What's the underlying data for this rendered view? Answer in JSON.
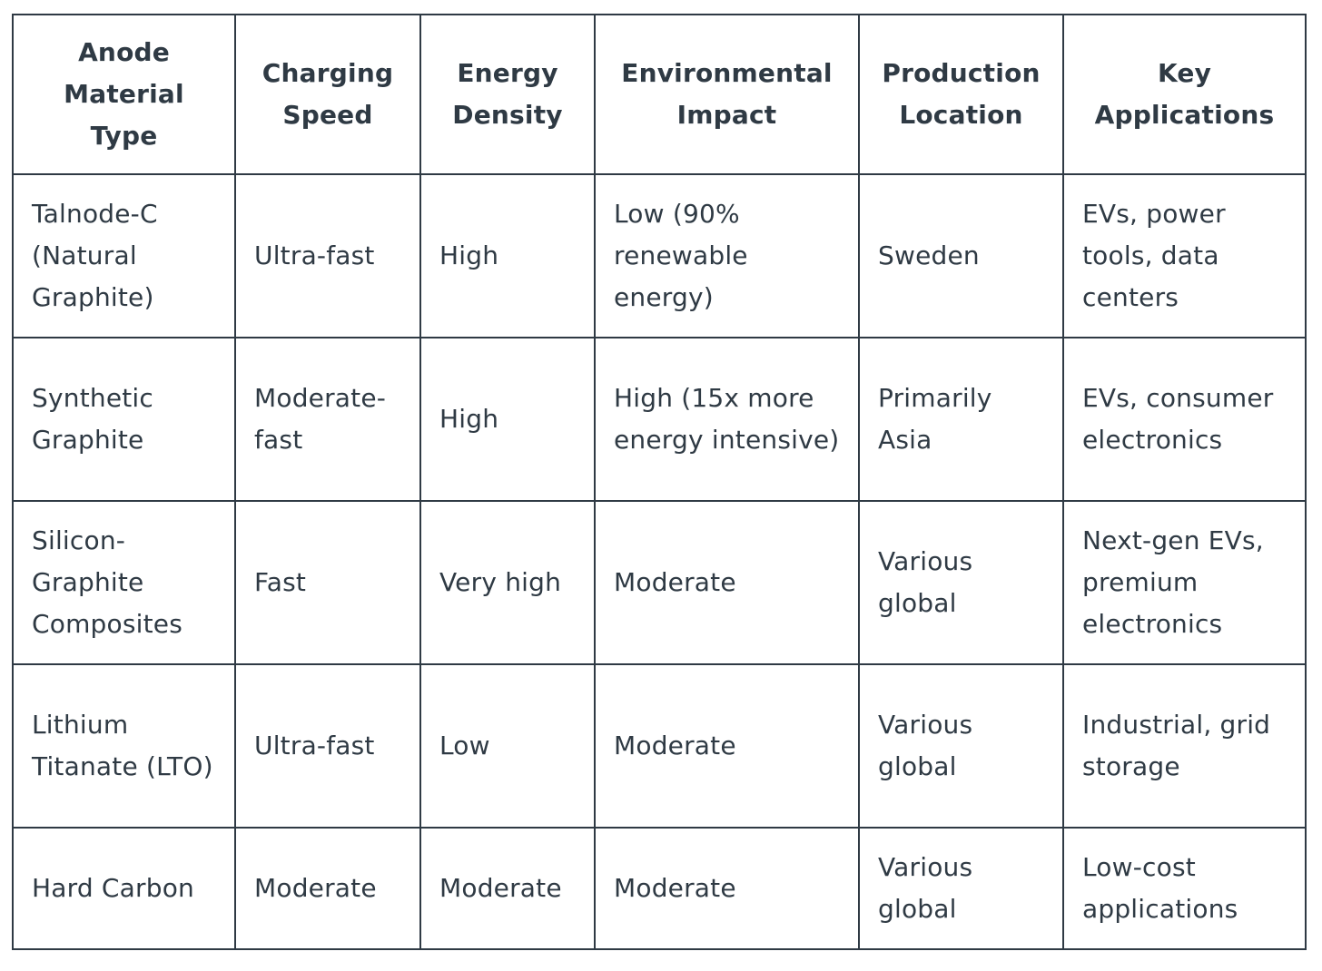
{
  "table": {
    "headers": [
      "Anode Material Type",
      "Charging Speed",
      "Energy Density",
      "Environmental Impact",
      "Production Location",
      "Key Applications"
    ],
    "rows": [
      [
        "Talnode-C (Natural Graphite)",
        "Ultra-fast",
        "High",
        "Low (90% renewable energy)",
        "Sweden",
        "EVs, power tools, data centers"
      ],
      [
        "Synthetic Graphite",
        "Moderate-fast",
        "High",
        "High (15x more energy intensive)",
        "Primarily Asia",
        "EVs, consumer electronics"
      ],
      [
        "Silicon-Graphite Composites",
        "Fast",
        "Very high",
        "Moderate",
        "Various global",
        "Next-gen EVs, premium electronics"
      ],
      [
        "Lithium Titanate (LTO)",
        "Ultra-fast",
        "Low",
        "Moderate",
        "Various global",
        "Industrial, grid storage"
      ],
      [
        "Hard Carbon",
        "Moderate",
        "Moderate",
        "Moderate",
        "Various global",
        "Low-cost applications"
      ]
    ]
  }
}
